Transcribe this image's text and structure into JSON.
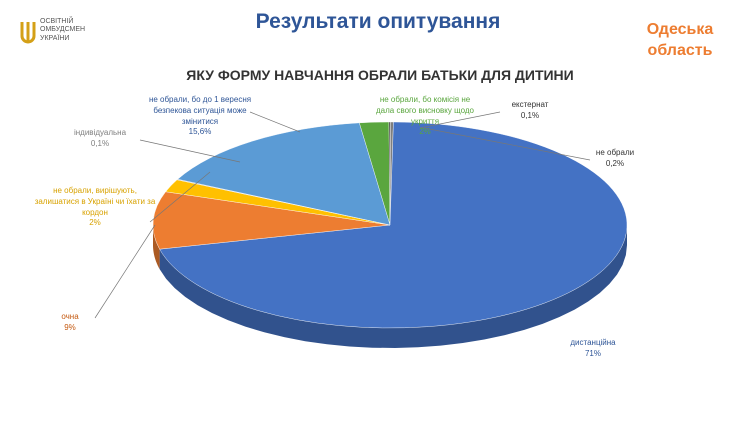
{
  "header": {
    "logo": "ОСВІТНІЙ ОМБУДСМЕН УКРАЇНИ",
    "title": "Результати опитування",
    "region": "Одеська область"
  },
  "chart_data": {
    "type": "pie",
    "title": "ЯКУ ФОРМУ НАВЧАННЯ ОБРАЛИ БАТЬКИ ДЛЯ ДИТИНИ",
    "categories": [
      "не обрали, бо комісія не дала свого висновку щодо укриття",
      "екстернат",
      "не обрали",
      "дистанційна",
      "очна",
      "не обрали, вирішують, залишатися в Україні чи їхати за кордон",
      "індивідуальна",
      "не обрали, бо до 1 вересня безпекова ситуація може змінитися"
    ],
    "values": [
      2,
      0.1,
      0.2,
      71,
      9,
      2,
      0.1,
      15.6
    ],
    "value_labels": [
      "2%",
      "0,1%",
      "0,2%",
      "71%",
      "9%",
      "2%",
      "0,1%",
      "15,6%"
    ],
    "colors": [
      "#5aa63e",
      "#3a3a3a",
      "#7f7f7f",
      "#4472c4",
      "#ed7d31",
      "#ffc000",
      "#a5a5a5",
      "#5b9bd5"
    ]
  }
}
